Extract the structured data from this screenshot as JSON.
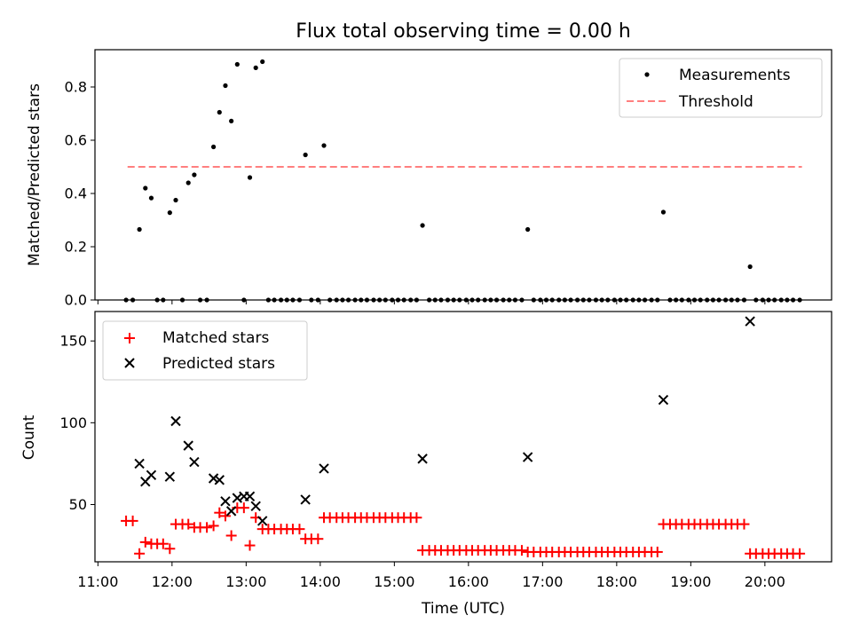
{
  "chart_data": [
    {
      "type": "scatter",
      "title": "Flux total observing time = 0.00 h",
      "ylabel": "Matched/Predicted stars",
      "xlabel": "",
      "ylim": [
        0,
        0.94
      ],
      "yticks": [
        "0.0",
        "0.2",
        "0.4",
        "0.6",
        "0.8"
      ],
      "xlim_hours": [
        10.96,
        20.9
      ],
      "legend_position": "top-right",
      "threshold": 0.5,
      "threshold_x": [
        11.4,
        20.5
      ],
      "series": [
        {
          "name": "Measurements",
          "color": "#000000",
          "marker": "dot",
          "points": [
            [
              11.38,
              0
            ],
            [
              11.47,
              0
            ],
            [
              11.56,
              0.265
            ],
            [
              11.64,
              0.42
            ],
            [
              11.72,
              0.383
            ],
            [
              11.8,
              0
            ],
            [
              11.88,
              0
            ],
            [
              11.97,
              0.328
            ],
            [
              12.05,
              0.375
            ],
            [
              12.14,
              0
            ],
            [
              12.22,
              0.44
            ],
            [
              12.3,
              0.47
            ],
            [
              12.38,
              0
            ],
            [
              12.47,
              0
            ],
            [
              12.56,
              0.575
            ],
            [
              12.64,
              0.705
            ],
            [
              12.72,
              0.805
            ],
            [
              12.8,
              0.672
            ],
            [
              12.88,
              0.885
            ],
            [
              12.97,
              0
            ],
            [
              13.05,
              0.46
            ],
            [
              13.13,
              0.872
            ],
            [
              13.22,
              0.895
            ],
            [
              13.3,
              0
            ],
            [
              13.38,
              0
            ],
            [
              13.47,
              0
            ],
            [
              13.55,
              0
            ],
            [
              13.63,
              0
            ],
            [
              13.72,
              0
            ],
            [
              13.8,
              0.545
            ],
            [
              13.88,
              0
            ],
            [
              13.97,
              0
            ],
            [
              14.05,
              0.58
            ],
            [
              14.13,
              0
            ],
            [
              14.22,
              0
            ],
            [
              14.3,
              0
            ],
            [
              14.38,
              0
            ],
            [
              14.47,
              0
            ],
            [
              14.55,
              0
            ],
            [
              14.63,
              0
            ],
            [
              14.72,
              0
            ],
            [
              14.8,
              0
            ],
            [
              14.88,
              0
            ],
            [
              14.97,
              0
            ],
            [
              15.05,
              0
            ],
            [
              15.13,
              0
            ],
            [
              15.22,
              0
            ],
            [
              15.3,
              0
            ],
            [
              15.38,
              0.28
            ],
            [
              15.47,
              0
            ],
            [
              15.55,
              0
            ],
            [
              15.63,
              0
            ],
            [
              15.72,
              0
            ],
            [
              15.8,
              0
            ],
            [
              15.88,
              0
            ],
            [
              15.97,
              0
            ],
            [
              16.05,
              0
            ],
            [
              16.13,
              0
            ],
            [
              16.22,
              0
            ],
            [
              16.3,
              0
            ],
            [
              16.38,
              0
            ],
            [
              16.47,
              0
            ],
            [
              16.55,
              0
            ],
            [
              16.63,
              0
            ],
            [
              16.72,
              0
            ],
            [
              16.8,
              0.265
            ],
            [
              16.88,
              0
            ],
            [
              16.97,
              0
            ],
            [
              17.05,
              0
            ],
            [
              17.13,
              0
            ],
            [
              17.22,
              0
            ],
            [
              17.3,
              0
            ],
            [
              17.38,
              0
            ],
            [
              17.47,
              0
            ],
            [
              17.55,
              0
            ],
            [
              17.63,
              0
            ],
            [
              17.72,
              0
            ],
            [
              17.8,
              0
            ],
            [
              17.88,
              0
            ],
            [
              17.97,
              0
            ],
            [
              18.05,
              0
            ],
            [
              18.13,
              0
            ],
            [
              18.22,
              0
            ],
            [
              18.3,
              0
            ],
            [
              18.38,
              0
            ],
            [
              18.47,
              0
            ],
            [
              18.55,
              0
            ],
            [
              18.63,
              0.33
            ],
            [
              18.72,
              0
            ],
            [
              18.8,
              0
            ],
            [
              18.88,
              0
            ],
            [
              18.97,
              0
            ],
            [
              19.05,
              0
            ],
            [
              19.13,
              0
            ],
            [
              19.22,
              0
            ],
            [
              19.3,
              0
            ],
            [
              19.38,
              0
            ],
            [
              19.47,
              0
            ],
            [
              19.55,
              0
            ],
            [
              19.63,
              0
            ],
            [
              19.72,
              0
            ],
            [
              19.8,
              0.125
            ],
            [
              19.88,
              0
            ],
            [
              19.97,
              0
            ],
            [
              20.05,
              0
            ],
            [
              20.13,
              0
            ],
            [
              20.22,
              0
            ],
            [
              20.3,
              0
            ],
            [
              20.38,
              0
            ],
            [
              20.47,
              0
            ]
          ]
        },
        {
          "name": "Threshold",
          "color": "#ff7f7f",
          "marker": "dashed-line"
        }
      ]
    },
    {
      "type": "scatter",
      "title": "",
      "ylabel": "Count",
      "xlabel": "Time (UTC)",
      "ylim": [
        15,
        168
      ],
      "yticks": [
        "50",
        "100",
        "150"
      ],
      "xlim_hours": [
        10.96,
        20.9
      ],
      "xticks": [
        "11:00",
        "12:00",
        "13:00",
        "14:00",
        "15:00",
        "16:00",
        "17:00",
        "18:00",
        "19:00",
        "20:00"
      ],
      "legend_position": "top-left",
      "series": [
        {
          "name": "Matched stars",
          "color": "#ff0000",
          "marker": "plus",
          "points": [
            [
              11.38,
              40
            ],
            [
              11.47,
              40
            ],
            [
              11.56,
              20
            ],
            [
              11.64,
              27
            ],
            [
              11.72,
              26
            ],
            [
              11.8,
              26
            ],
            [
              11.88,
              26
            ],
            [
              11.97,
              23
            ],
            [
              12.05,
              38
            ],
            [
              12.14,
              38
            ],
            [
              12.22,
              38
            ],
            [
              12.3,
              36
            ],
            [
              12.38,
              36
            ],
            [
              12.47,
              36
            ],
            [
              12.56,
              37
            ],
            [
              12.64,
              45
            ],
            [
              12.72,
              43
            ],
            [
              12.8,
              31
            ],
            [
              12.88,
              48
            ],
            [
              12.97,
              48
            ],
            [
              13.05,
              25
            ],
            [
              13.13,
              42
            ],
            [
              13.22,
              35
            ],
            [
              13.3,
              35
            ],
            [
              13.38,
              35
            ],
            [
              13.47,
              35
            ],
            [
              13.55,
              35
            ],
            [
              13.63,
              35
            ],
            [
              13.72,
              35
            ],
            [
              13.8,
              29
            ],
            [
              13.88,
              29
            ],
            [
              13.97,
              29
            ],
            [
              14.05,
              42
            ],
            [
              14.13,
              42
            ],
            [
              14.22,
              42
            ],
            [
              14.3,
              42
            ],
            [
              14.38,
              42
            ],
            [
              14.47,
              42
            ],
            [
              14.55,
              42
            ],
            [
              14.63,
              42
            ],
            [
              14.72,
              42
            ],
            [
              14.8,
              42
            ],
            [
              14.88,
              42
            ],
            [
              14.97,
              42
            ],
            [
              15.05,
              42
            ],
            [
              15.13,
              42
            ],
            [
              15.22,
              42
            ],
            [
              15.3,
              42
            ],
            [
              15.38,
              22
            ],
            [
              15.47,
              22
            ],
            [
              15.55,
              22
            ],
            [
              15.63,
              22
            ],
            [
              15.72,
              22
            ],
            [
              15.8,
              22
            ],
            [
              15.88,
              22
            ],
            [
              15.97,
              22
            ],
            [
              16.05,
              22
            ],
            [
              16.13,
              22
            ],
            [
              16.22,
              22
            ],
            [
              16.3,
              22
            ],
            [
              16.38,
              22
            ],
            [
              16.47,
              22
            ],
            [
              16.55,
              22
            ],
            [
              16.63,
              22
            ],
            [
              16.72,
              22
            ],
            [
              16.8,
              21
            ],
            [
              16.88,
              21
            ],
            [
              16.97,
              21
            ],
            [
              17.05,
              21
            ],
            [
              17.13,
              21
            ],
            [
              17.22,
              21
            ],
            [
              17.3,
              21
            ],
            [
              17.38,
              21
            ],
            [
              17.47,
              21
            ],
            [
              17.55,
              21
            ],
            [
              17.63,
              21
            ],
            [
              17.72,
              21
            ],
            [
              17.8,
              21
            ],
            [
              17.88,
              21
            ],
            [
              17.97,
              21
            ],
            [
              18.05,
              21
            ],
            [
              18.13,
              21
            ],
            [
              18.22,
              21
            ],
            [
              18.3,
              21
            ],
            [
              18.38,
              21
            ],
            [
              18.47,
              21
            ],
            [
              18.55,
              21
            ],
            [
              18.63,
              38
            ],
            [
              18.72,
              38
            ],
            [
              18.8,
              38
            ],
            [
              18.88,
              38
            ],
            [
              18.97,
              38
            ],
            [
              19.05,
              38
            ],
            [
              19.13,
              38
            ],
            [
              19.22,
              38
            ],
            [
              19.3,
              38
            ],
            [
              19.38,
              38
            ],
            [
              19.47,
              38
            ],
            [
              19.55,
              38
            ],
            [
              19.63,
              38
            ],
            [
              19.72,
              38
            ],
            [
              19.8,
              20
            ],
            [
              19.88,
              20
            ],
            [
              19.97,
              20
            ],
            [
              20.05,
              20
            ],
            [
              20.13,
              20
            ],
            [
              20.22,
              20
            ],
            [
              20.3,
              20
            ],
            [
              20.38,
              20
            ],
            [
              20.47,
              20
            ]
          ]
        },
        {
          "name": "Predicted stars",
          "color": "#000000",
          "marker": "x",
          "points": [
            [
              11.56,
              75
            ],
            [
              11.64,
              64
            ],
            [
              11.72,
              68
            ],
            [
              11.97,
              67
            ],
            [
              12.05,
              101
            ],
            [
              12.22,
              86
            ],
            [
              12.3,
              76
            ],
            [
              12.56,
              66
            ],
            [
              12.64,
              65
            ],
            [
              12.72,
              52
            ],
            [
              12.8,
              46
            ],
            [
              12.88,
              54
            ],
            [
              12.97,
              55
            ],
            [
              13.05,
              55
            ],
            [
              13.13,
              49
            ],
            [
              13.22,
              40
            ],
            [
              13.8,
              53
            ],
            [
              14.05,
              72
            ],
            [
              15.38,
              78
            ],
            [
              16.8,
              79
            ],
            [
              18.63,
              114
            ],
            [
              19.8,
              162
            ]
          ]
        }
      ]
    }
  ]
}
